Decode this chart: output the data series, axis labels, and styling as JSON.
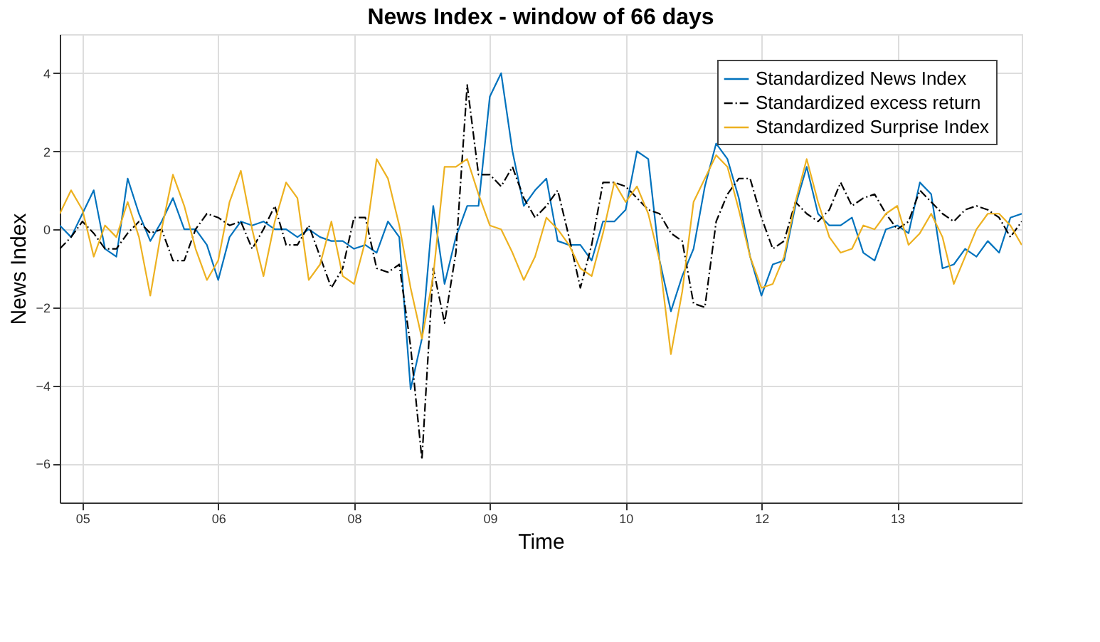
{
  "chart_data": {
    "type": "line",
    "title": "News Index - window of 66 days",
    "xlabel": "Time",
    "ylabel": "News Index",
    "categories": [
      null,
      null,
      "05",
      null,
      null,
      null,
      null,
      null,
      null,
      null,
      null,
      null,
      null,
      null,
      "06",
      null,
      null,
      null,
      null,
      null,
      null,
      null,
      null,
      null,
      null,
      null,
      "08",
      null,
      null,
      null,
      null,
      null,
      null,
      null,
      null,
      null,
      null,
      null,
      "09",
      null,
      null,
      null,
      null,
      null,
      null,
      null,
      null,
      null,
      null,
      null,
      "10",
      null,
      null,
      null,
      null,
      null,
      null,
      null,
      null,
      null,
      null,
      null,
      "12",
      null,
      null,
      null,
      null,
      null,
      null,
      null,
      null,
      null,
      null,
      null,
      "13",
      null,
      null,
      null,
      null,
      null,
      null,
      null,
      null,
      null,
      null,
      null
    ],
    "ylim": [
      -7,
      5
    ],
    "yticks": [
      -6,
      -4,
      -2,
      0,
      2,
      4
    ],
    "grid": true,
    "legend": "top right",
    "marker": "none",
    "series": [
      {
        "name": "Standardized News Index",
        "color": "#0072bd",
        "line_style": "solid",
        "values": [
          0.1,
          -0.2,
          0.4,
          1.0,
          -0.5,
          -0.7,
          1.3,
          0.4,
          -0.3,
          0.2,
          0.8,
          0,
          0,
          -0.4,
          -1.3,
          -0.2,
          0.2,
          0.1,
          0.2,
          0,
          0,
          -0.2,
          0,
          -0.2,
          -0.3,
          -0.3,
          -0.5,
          -0.4,
          -0.6,
          0.2,
          -0.2,
          -4.1,
          -2.8,
          0.6,
          -1.4,
          -0.2,
          0.6,
          0.6,
          3.4,
          4.0,
          2.0,
          0.6,
          1.0,
          1.3,
          -0.3,
          -0.4,
          -0.4,
          -0.8,
          0.2,
          0.2,
          0.5,
          2.0,
          1.8,
          -0.8,
          -2.1,
          -1.2,
          -0.5,
          1.1,
          2.2,
          1.8,
          0.8,
          -0.7,
          -1.7,
          -0.9,
          -0.8,
          0.6,
          1.6,
          0.4,
          0.1,
          0.1,
          0.3,
          -0.6,
          -0.8,
          0,
          0.1,
          -0.1,
          1.2,
          0.9,
          -1.0,
          -0.9,
          -0.5,
          -0.7,
          -0.3,
          -0.6,
          0.3,
          0.4
        ]
      },
      {
        "name": "Standardized excess return",
        "color": "#000000",
        "line_style": "dashed",
        "values": [
          -0.5,
          -0.2,
          0.2,
          -0.1,
          -0.5,
          -0.5,
          -0.1,
          0.2,
          -0.1,
          0,
          -0.8,
          -0.8,
          0,
          0.4,
          0.3,
          0.1,
          0.2,
          -0.5,
          0,
          0.6,
          -0.4,
          -0.4,
          0.1,
          -0.7,
          -1.5,
          -1.0,
          0.3,
          0.3,
          -1.0,
          -1.1,
          -0.9,
          -3.0,
          -5.9,
          -1.0,
          -2.4,
          -0.6,
          3.7,
          1.4,
          1.4,
          1.1,
          1.6,
          0.8,
          0.3,
          0.6,
          1.0,
          -0.2,
          -1.5,
          -0.4,
          1.2,
          1.2,
          1.1,
          0.8,
          0.5,
          0.4,
          -0.1,
          -0.3,
          -1.9,
          -2.0,
          0.2,
          0.9,
          1.3,
          1.3,
          0.3,
          -0.5,
          -0.3,
          0.7,
          0.4,
          0.2,
          0.5,
          1.2,
          0.6,
          0.8,
          0.9,
          0.4,
          0,
          0.2,
          1.0,
          0.7,
          0.4,
          0.2,
          0.5,
          0.6,
          0.5,
          0.3,
          -0.2,
          0.2
        ]
      },
      {
        "name": "Standardized Surprise Index",
        "color": "#edb120",
        "line_style": "solid",
        "values": [
          0.4,
          1.0,
          0.5,
          -0.7,
          0.1,
          -0.2,
          0.7,
          -0.2,
          -1.7,
          0,
          1.4,
          0.6,
          -0.5,
          -1.3,
          -0.8,
          0.7,
          1.5,
          0,
          -1.2,
          0.2,
          1.2,
          0.8,
          -1.3,
          -0.9,
          0.2,
          -1.2,
          -1.4,
          -0.3,
          1.8,
          1.3,
          0.1,
          -1.5,
          -2.8,
          -1.2,
          1.6,
          1.6,
          1.8,
          0.9,
          0.1,
          0,
          -0.6,
          -1.3,
          -0.7,
          0.3,
          0,
          -0.4,
          -1.0,
          -1.2,
          -0.1,
          1.2,
          0.7,
          1.1,
          0.4,
          -0.8,
          -3.2,
          -1.6,
          0.7,
          1.3,
          1.9,
          1.6,
          0.5,
          -0.7,
          -1.5,
          -1.4,
          -0.7,
          0.7,
          1.8,
          0.7,
          -0.2,
          -0.6,
          -0.5,
          0.1,
          0,
          0.4,
          0.6,
          -0.4,
          -0.1,
          0.4,
          -0.2,
          -1.4,
          -0.7,
          0,
          0.4,
          0.4,
          0.1,
          -0.4
        ]
      }
    ]
  }
}
